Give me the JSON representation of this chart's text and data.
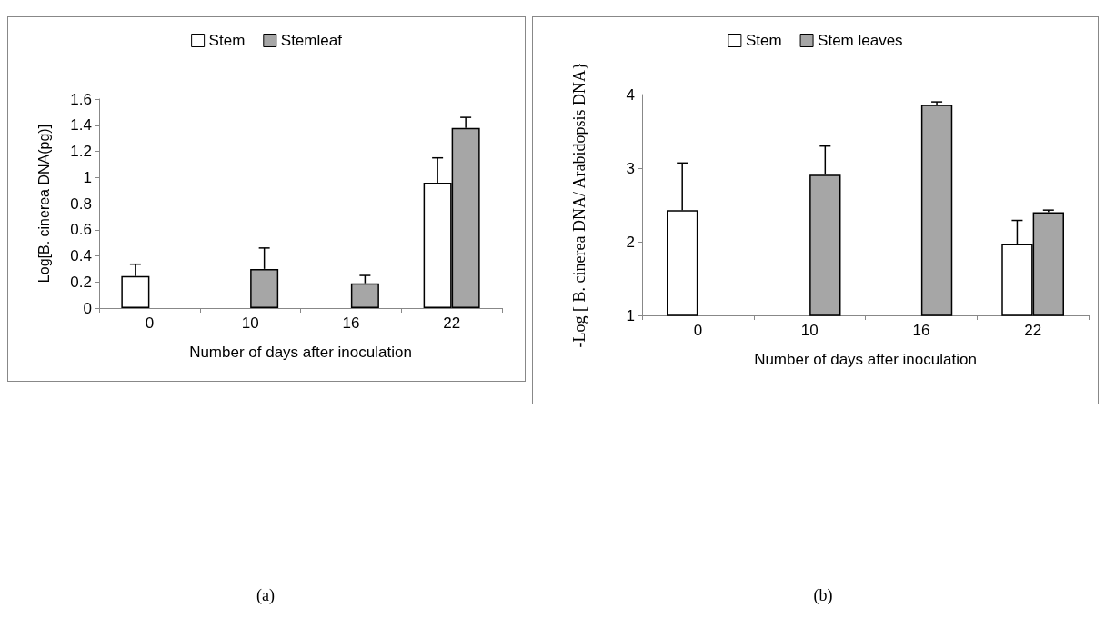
{
  "chart_data": [
    {
      "type": "bar",
      "xlabel": "Number of days after inoculation",
      "ylabel": "Log[B. cinerea DNA(pg)]",
      "categories": [
        "0",
        "10",
        "16",
        "22"
      ],
      "series": [
        {
          "name": "Stem",
          "color": "#ffffff",
          "values": [
            0.245,
            null,
            null,
            0.96
          ],
          "errors": [
            [
              0.245,
              0.336
            ],
            null,
            null,
            [
              0.96,
              1.15
            ]
          ]
        },
        {
          "name": "Stemleaf",
          "color": "#a6a6a6",
          "values": [
            null,
            0.3,
            0.19,
            1.38
          ],
          "errors": [
            null,
            [
              0.3,
              0.46
            ],
            [
              0.19,
              0.25
            ],
            [
              1.38,
              1.46
            ]
          ]
        }
      ],
      "ylim": [
        0,
        1.6
      ],
      "yticks": [
        0,
        0.2,
        0.4,
        0.6,
        0.8,
        1,
        1.2,
        1.4,
        1.6
      ],
      "grid": false,
      "legend": "top",
      "annotations": [
        "(a)"
      ]
    },
    {
      "type": "bar",
      "xlabel": "Number of days after inoculation",
      "ylabel": "-Log [ B. cinerea DNA/ Arabidopsis DNA}",
      "categories": [
        "0",
        "10",
        "16",
        "22"
      ],
      "series": [
        {
          "name": "Stem",
          "color": "#ffffff",
          "values": [
            2.43,
            null,
            null,
            1.97
          ],
          "errors": [
            [
              2.43,
              3.07
            ],
            null,
            null,
            [
              1.97,
              2.29
            ]
          ]
        },
        {
          "name": "Stem leaves",
          "color": "#a6a6a6",
          "values": [
            null,
            2.91,
            3.86,
            2.4
          ],
          "errors": [
            null,
            [
              2.91,
              3.3
            ],
            [
              3.86,
              3.9
            ],
            [
              2.4,
              2.43
            ]
          ]
        }
      ],
      "ylim": [
        1,
        4
      ],
      "yticks": [
        1,
        2,
        3,
        4
      ],
      "grid": false,
      "legend": "top",
      "annotations": [
        "(b)"
      ]
    }
  ]
}
